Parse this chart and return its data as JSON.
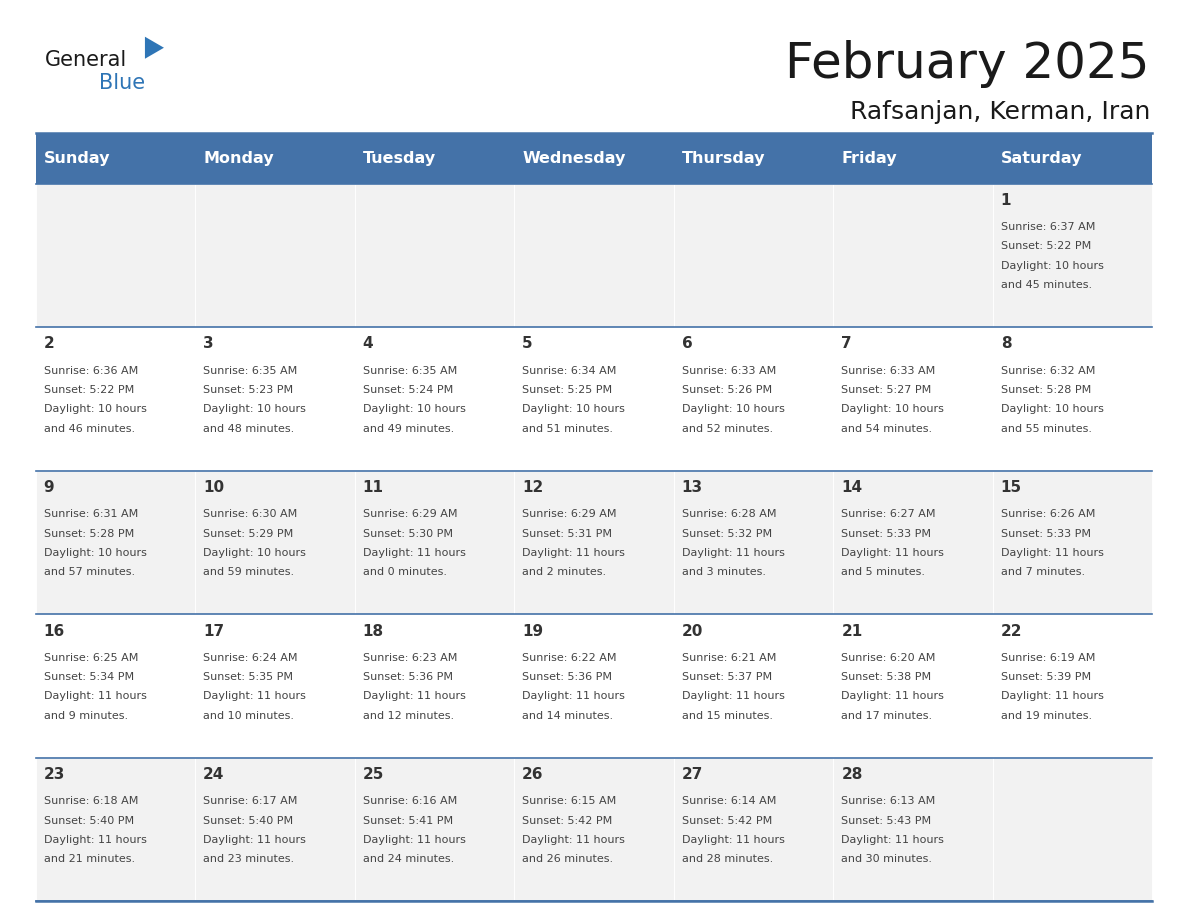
{
  "title": "February 2025",
  "subtitle": "Rafsanjan, Kerman, Iran",
  "days_of_week": [
    "Sunday",
    "Monday",
    "Tuesday",
    "Wednesday",
    "Thursday",
    "Friday",
    "Saturday"
  ],
  "header_bg": "#4472A8",
  "header_text": "#FFFFFF",
  "cell_bg_odd": "#F2F2F2",
  "cell_bg_even": "#FFFFFF",
  "border_color": "#4472A8",
  "day_number_color": "#333333",
  "info_text_color": "#444444",
  "title_color": "#1a1a1a",
  "subtitle_color": "#1a1a1a",
  "logo_general_color": "#1a1a1a",
  "logo_blue_color": "#2E75B6",
  "calendar_data": [
    [
      null,
      null,
      null,
      null,
      null,
      null,
      {
        "day": 1,
        "sunrise": "6:37 AM",
        "sunset": "5:22 PM",
        "daylight_line1": "Daylight: 10 hours",
        "daylight_line2": "and 45 minutes."
      }
    ],
    [
      {
        "day": 2,
        "sunrise": "6:36 AM",
        "sunset": "5:22 PM",
        "daylight_line1": "Daylight: 10 hours",
        "daylight_line2": "and 46 minutes."
      },
      {
        "day": 3,
        "sunrise": "6:35 AM",
        "sunset": "5:23 PM",
        "daylight_line1": "Daylight: 10 hours",
        "daylight_line2": "and 48 minutes."
      },
      {
        "day": 4,
        "sunrise": "6:35 AM",
        "sunset": "5:24 PM",
        "daylight_line1": "Daylight: 10 hours",
        "daylight_line2": "and 49 minutes."
      },
      {
        "day": 5,
        "sunrise": "6:34 AM",
        "sunset": "5:25 PM",
        "daylight_line1": "Daylight: 10 hours",
        "daylight_line2": "and 51 minutes."
      },
      {
        "day": 6,
        "sunrise": "6:33 AM",
        "sunset": "5:26 PM",
        "daylight_line1": "Daylight: 10 hours",
        "daylight_line2": "and 52 minutes."
      },
      {
        "day": 7,
        "sunrise": "6:33 AM",
        "sunset": "5:27 PM",
        "daylight_line1": "Daylight: 10 hours",
        "daylight_line2": "and 54 minutes."
      },
      {
        "day": 8,
        "sunrise": "6:32 AM",
        "sunset": "5:28 PM",
        "daylight_line1": "Daylight: 10 hours",
        "daylight_line2": "and 55 minutes."
      }
    ],
    [
      {
        "day": 9,
        "sunrise": "6:31 AM",
        "sunset": "5:28 PM",
        "daylight_line1": "Daylight: 10 hours",
        "daylight_line2": "and 57 minutes."
      },
      {
        "day": 10,
        "sunrise": "6:30 AM",
        "sunset": "5:29 PM",
        "daylight_line1": "Daylight: 10 hours",
        "daylight_line2": "and 59 minutes."
      },
      {
        "day": 11,
        "sunrise": "6:29 AM",
        "sunset": "5:30 PM",
        "daylight_line1": "Daylight: 11 hours",
        "daylight_line2": "and 0 minutes."
      },
      {
        "day": 12,
        "sunrise": "6:29 AM",
        "sunset": "5:31 PM",
        "daylight_line1": "Daylight: 11 hours",
        "daylight_line2": "and 2 minutes."
      },
      {
        "day": 13,
        "sunrise": "6:28 AM",
        "sunset": "5:32 PM",
        "daylight_line1": "Daylight: 11 hours",
        "daylight_line2": "and 3 minutes."
      },
      {
        "day": 14,
        "sunrise": "6:27 AM",
        "sunset": "5:33 PM",
        "daylight_line1": "Daylight: 11 hours",
        "daylight_line2": "and 5 minutes."
      },
      {
        "day": 15,
        "sunrise": "6:26 AM",
        "sunset": "5:33 PM",
        "daylight_line1": "Daylight: 11 hours",
        "daylight_line2": "and 7 minutes."
      }
    ],
    [
      {
        "day": 16,
        "sunrise": "6:25 AM",
        "sunset": "5:34 PM",
        "daylight_line1": "Daylight: 11 hours",
        "daylight_line2": "and 9 minutes."
      },
      {
        "day": 17,
        "sunrise": "6:24 AM",
        "sunset": "5:35 PM",
        "daylight_line1": "Daylight: 11 hours",
        "daylight_line2": "and 10 minutes."
      },
      {
        "day": 18,
        "sunrise": "6:23 AM",
        "sunset": "5:36 PM",
        "daylight_line1": "Daylight: 11 hours",
        "daylight_line2": "and 12 minutes."
      },
      {
        "day": 19,
        "sunrise": "6:22 AM",
        "sunset": "5:36 PM",
        "daylight_line1": "Daylight: 11 hours",
        "daylight_line2": "and 14 minutes."
      },
      {
        "day": 20,
        "sunrise": "6:21 AM",
        "sunset": "5:37 PM",
        "daylight_line1": "Daylight: 11 hours",
        "daylight_line2": "and 15 minutes."
      },
      {
        "day": 21,
        "sunrise": "6:20 AM",
        "sunset": "5:38 PM",
        "daylight_line1": "Daylight: 11 hours",
        "daylight_line2": "and 17 minutes."
      },
      {
        "day": 22,
        "sunrise": "6:19 AM",
        "sunset": "5:39 PM",
        "daylight_line1": "Daylight: 11 hours",
        "daylight_line2": "and 19 minutes."
      }
    ],
    [
      {
        "day": 23,
        "sunrise": "6:18 AM",
        "sunset": "5:40 PM",
        "daylight_line1": "Daylight: 11 hours",
        "daylight_line2": "and 21 minutes."
      },
      {
        "day": 24,
        "sunrise": "6:17 AM",
        "sunset": "5:40 PM",
        "daylight_line1": "Daylight: 11 hours",
        "daylight_line2": "and 23 minutes."
      },
      {
        "day": 25,
        "sunrise": "6:16 AM",
        "sunset": "5:41 PM",
        "daylight_line1": "Daylight: 11 hours",
        "daylight_line2": "and 24 minutes."
      },
      {
        "day": 26,
        "sunrise": "6:15 AM",
        "sunset": "5:42 PM",
        "daylight_line1": "Daylight: 11 hours",
        "daylight_line2": "and 26 minutes."
      },
      {
        "day": 27,
        "sunrise": "6:14 AM",
        "sunset": "5:42 PM",
        "daylight_line1": "Daylight: 11 hours",
        "daylight_line2": "and 28 minutes."
      },
      {
        "day": 28,
        "sunrise": "6:13 AM",
        "sunset": "5:43 PM",
        "daylight_line1": "Daylight: 11 hours",
        "daylight_line2": "and 30 minutes."
      },
      null
    ]
  ]
}
